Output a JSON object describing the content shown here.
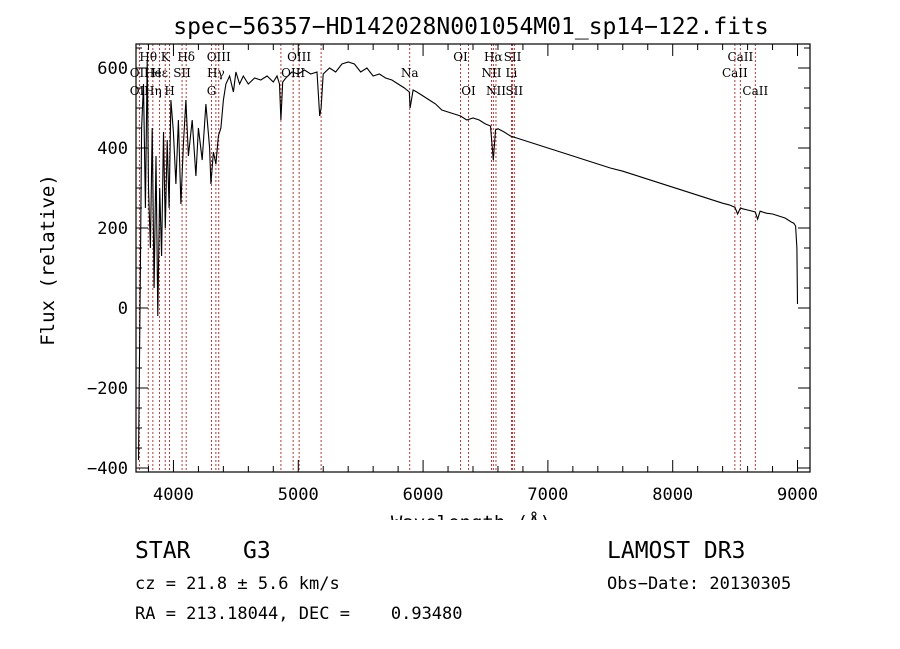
{
  "chart_data": {
    "type": "line",
    "title": "spec−56357−HD142028N001054M01_sp14−122.fits",
    "xlabel": "Wavelength (Å)",
    "ylabel": "Flux (relative)",
    "xlim": [
      3700,
      9100
    ],
    "ylim": [
      -410,
      660
    ],
    "xticks": [
      4000,
      5000,
      6000,
      7000,
      8000,
      9000
    ],
    "yticks": [
      -400,
      -200,
      0,
      200,
      400,
      600
    ],
    "ytick_labels": [
      "−400",
      "−200",
      "0",
      "200",
      "400",
      "600"
    ],
    "grid": false,
    "series": [
      {
        "name": "spectrum",
        "x": [
          3720,
          3735,
          3745,
          3760,
          3775,
          3790,
          3800,
          3815,
          3830,
          3845,
          3860,
          3875,
          3890,
          3905,
          3920,
          3935,
          3950,
          3965,
          3980,
          4000,
          4020,
          4040,
          4060,
          4080,
          4100,
          4120,
          4150,
          4180,
          4200,
          4230,
          4260,
          4290,
          4300,
          4320,
          4340,
          4360,
          4380,
          4400,
          4420,
          4450,
          4480,
          4500,
          4530,
          4560,
          4600,
          4650,
          4700,
          4750,
          4800,
          4830,
          4850,
          4861,
          4875,
          4900,
          4950,
          5000,
          5050,
          5100,
          5150,
          5172,
          5183,
          5200,
          5250,
          5300,
          5350,
          5400,
          5450,
          5500,
          5550,
          5600,
          5650,
          5700,
          5750,
          5800,
          5850,
          5890,
          5896,
          5920,
          5950,
          6000,
          6050,
          6100,
          6150,
          6200,
          6250,
          6300,
          6350,
          6400,
          6450,
          6500,
          6540,
          6563,
          6580,
          6600,
          6650,
          6700,
          6750,
          6800,
          6900,
          7000,
          7100,
          7200,
          7300,
          7400,
          7500,
          7600,
          7700,
          7800,
          7900,
          8000,
          8100,
          8200,
          8300,
          8400,
          8450,
          8498,
          8520,
          8542,
          8560,
          8600,
          8662,
          8680,
          8700,
          8750,
          8800,
          8850,
          8900,
          8950,
          8970,
          8985,
          8995,
          9000
        ],
        "y": [
          -380,
          100,
          450,
          560,
          250,
          620,
          300,
          150,
          450,
          50,
          380,
          -20,
          300,
          130,
          440,
          200,
          420,
          250,
          520,
          440,
          310,
          470,
          260,
          410,
          520,
          380,
          470,
          330,
          450,
          370,
          510,
          400,
          310,
          390,
          360,
          430,
          450,
          520,
          560,
          580,
          540,
          590,
          560,
          580,
          560,
          575,
          570,
          580,
          565,
          580,
          560,
          470,
          565,
          575,
          590,
          585,
          595,
          585,
          590,
          480,
          500,
          585,
          600,
          590,
          610,
          615,
          610,
          590,
          600,
          580,
          585,
          575,
          570,
          560,
          550,
          540,
          500,
          545,
          540,
          530,
          520,
          510,
          495,
          490,
          485,
          480,
          470,
          475,
          470,
          460,
          455,
          370,
          445,
          448,
          440,
          430,
          425,
          420,
          410,
          400,
          390,
          380,
          370,
          360,
          350,
          342,
          332,
          322,
          312,
          302,
          292,
          282,
          272,
          262,
          258,
          252,
          235,
          250,
          248,
          245,
          240,
          222,
          242,
          237,
          235,
          230,
          225,
          215,
          212,
          205,
          150,
          10
        ]
      }
    ],
    "line_markers": [
      {
        "label": "Hθ",
        "x": 3798,
        "row": 1
      },
      {
        "label": "OII",
        "x": 3727,
        "row": 2
      },
      {
        "label": "He",
        "x": 3835,
        "row": 2
      },
      {
        "label": "K",
        "x": 3934,
        "row": 1
      },
      {
        "label": "Hε",
        "x": 3889,
        "row": 2
      },
      {
        "label": "SII",
        "x": 4069,
        "row": 2
      },
      {
        "label": "Hδ",
        "x": 4102,
        "row": 1
      },
      {
        "label": "OII",
        "x": 3727,
        "row": 3
      },
      {
        "label": "Hη",
        "x": 3835,
        "row": 3
      },
      {
        "label": "H",
        "x": 3969,
        "row": 3
      },
      {
        "label": "OIII",
        "x": 4363,
        "row": 1
      },
      {
        "label": "Hγ",
        "x": 4340,
        "row": 2
      },
      {
        "label": "G",
        "x": 4305,
        "row": 3
      },
      {
        "label": "OIII",
        "x": 5007,
        "row": 1
      },
      {
        "label": "OIII",
        "x": 4959,
        "row": 2
      },
      {
        "label": "Na",
        "x": 5893,
        "row": 2
      },
      {
        "label": "OI",
        "x": 6300,
        "row": 1
      },
      {
        "label": "OI",
        "x": 6364,
        "row": 3
      },
      {
        "label": "Hα",
        "x": 6563,
        "row": 1
      },
      {
        "label": "SII",
        "x": 6717,
        "row": 1
      },
      {
        "label": "NII",
        "x": 6548,
        "row": 2
      },
      {
        "label": "Li",
        "x": 6708,
        "row": 2
      },
      {
        "label": "NII",
        "x": 6584,
        "row": 3
      },
      {
        "label": "SII",
        "x": 6731,
        "row": 3
      },
      {
        "label": "CaII",
        "x": 8542,
        "row": 1
      },
      {
        "label": "CaII",
        "x": 8498,
        "row": 2
      },
      {
        "label": "CaII",
        "x": 8662,
        "row": 3
      }
    ],
    "marker_lines": [
      3727,
      3798,
      3835,
      3889,
      3934,
      3969,
      4069,
      4102,
      4305,
      4340,
      4363,
      4861,
      4959,
      5007,
      5183,
      5893,
      6300,
      6364,
      6548,
      6563,
      6584,
      6708,
      6717,
      6731,
      8498,
      8542,
      8662
    ],
    "colors": {
      "axis": "#000000",
      "spectrum": "#000000",
      "marker": "#b22222"
    }
  },
  "info": {
    "object_type": "STAR",
    "subclass": "G3",
    "survey": "LAMOST DR3",
    "cz": "cz = 21.8 ± 5.6 km/s",
    "obs_date": "Obs−Date: 20130305",
    "radec": "RA = 213.18044, DEC =    0.93480"
  }
}
